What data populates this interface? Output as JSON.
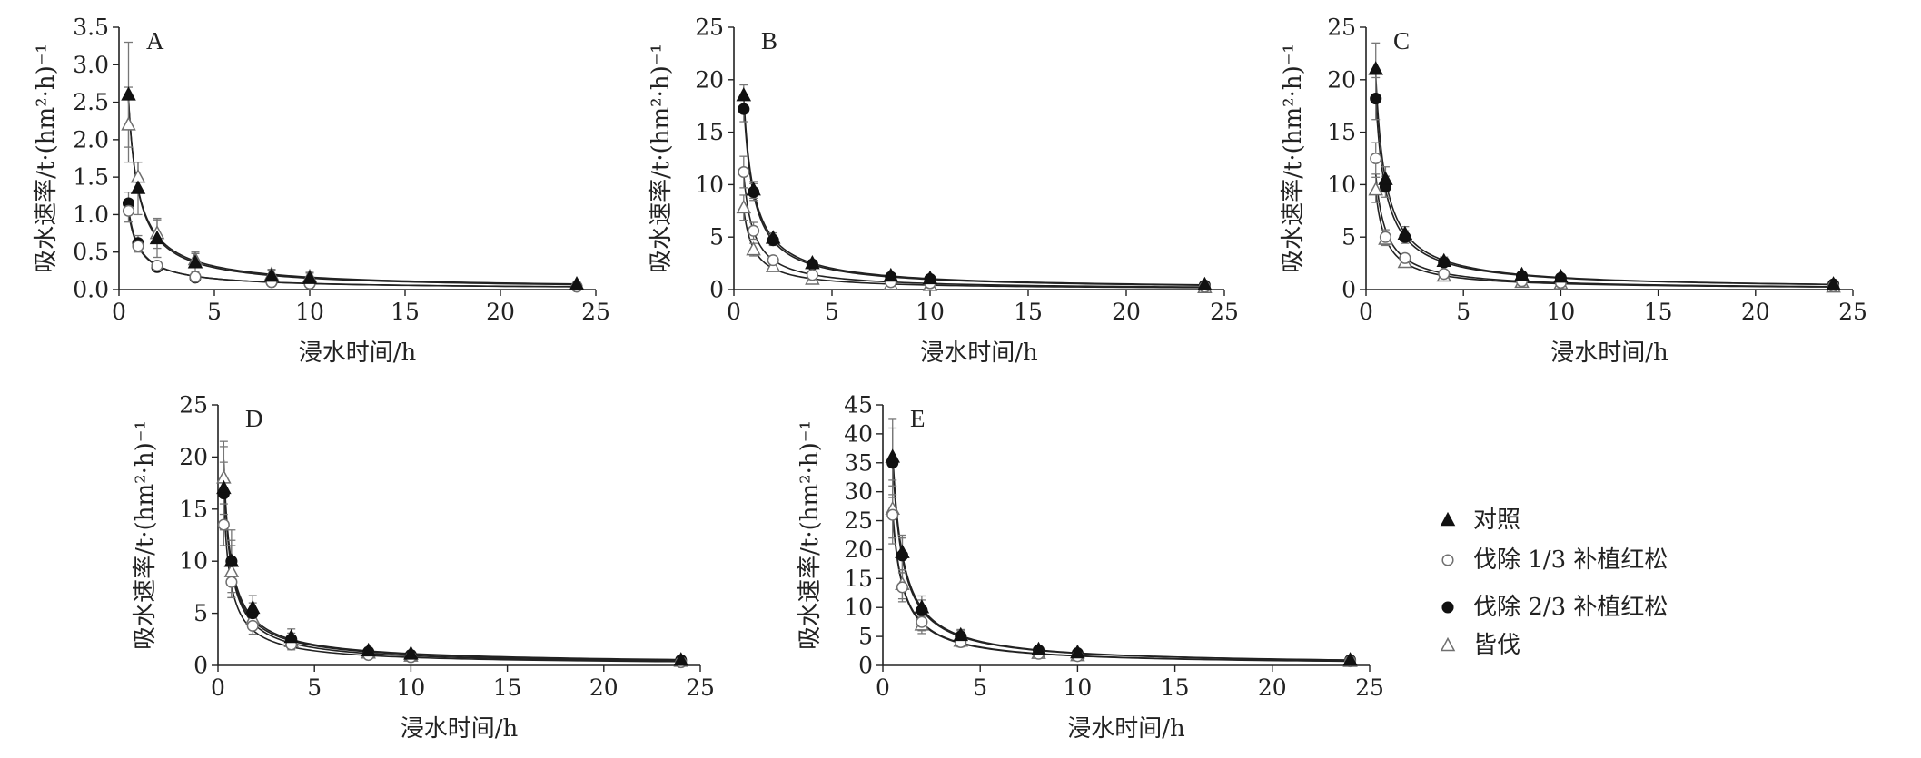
{
  "legend": {
    "placement": "right",
    "entries": [
      {
        "label": "对照",
        "marker": "filled-triangle"
      },
      {
        "label": "伐除 1/3 补植红松",
        "marker": "open-circle"
      },
      {
        "label": "伐除 2/3 补植红松",
        "marker": "filled-circle"
      },
      {
        "label": "皆伐",
        "marker": "open-triangle"
      }
    ]
  },
  "chart_data": [
    {
      "type": "line",
      "label": "A",
      "xlabel": "浸水时间/h",
      "ylabel": "吸水速率/t·(hm²·h)⁻¹",
      "xlim": [
        0,
        25
      ],
      "ylim": [
        0,
        3.5
      ],
      "xtick_labels": [
        "0",
        "5",
        "10",
        "15",
        "20",
        "25"
      ],
      "ytick_labels": [
        "0.0",
        "0.5",
        "1.0",
        "1.5",
        "2.0",
        "2.5",
        "3.0",
        "3.5"
      ],
      "x": [
        0.5,
        1,
        2,
        4,
        8,
        10,
        24
      ],
      "series": [
        {
          "marker": "filled-triangle",
          "values": [
            2.6,
            1.35,
            0.68,
            0.36,
            0.18,
            0.15,
            0.07
          ],
          "err": [
            0.7,
            0.35,
            0.25,
            0.12,
            0.08,
            0.07,
            0.03
          ]
        },
        {
          "marker": "open-circle",
          "values": [
            1.05,
            0.58,
            0.32,
            0.17,
            0.1,
            0.08,
            0.04
          ],
          "err": [
            0.15,
            0.08,
            0.05,
            0.03,
            0.02,
            0.02,
            0.01
          ]
        },
        {
          "marker": "filled-circle",
          "values": [
            1.15,
            0.62,
            0.3,
            0.16,
            0.1,
            0.08,
            0.04
          ],
          "err": [
            0.15,
            0.1,
            0.05,
            0.03,
            0.02,
            0.02,
            0.01
          ]
        },
        {
          "marker": "open-triangle",
          "values": [
            2.2,
            1.5,
            0.75,
            0.4,
            0.2,
            0.17,
            0.07
          ],
          "err": [
            0.5,
            0.2,
            0.2,
            0.1,
            0.07,
            0.06,
            0.02
          ]
        }
      ]
    },
    {
      "type": "line",
      "label": "B",
      "xlabel": "浸水时间/h",
      "ylabel": "吸水速率/t·(hm²·h)⁻¹",
      "xlim": [
        0,
        25
      ],
      "ylim": [
        0,
        25
      ],
      "xtick_labels": [
        "0",
        "5",
        "10",
        "15",
        "20",
        "25"
      ],
      "ytick_labels": [
        "0",
        "5",
        "10",
        "15",
        "20",
        "25"
      ],
      "x": [
        0.5,
        1,
        2,
        4,
        8,
        10,
        24
      ],
      "series": [
        {
          "marker": "filled-triangle",
          "values": [
            18.5,
            9.5,
            4.9,
            2.5,
            1.3,
            1.05,
            0.45
          ],
          "err": [
            1.0,
            0.8,
            0.5,
            0.3,
            0.2,
            0.15,
            0.1
          ]
        },
        {
          "marker": "open-circle",
          "values": [
            11.2,
            5.6,
            2.8,
            1.4,
            0.7,
            0.6,
            0.25
          ],
          "err": [
            1.5,
            0.8,
            0.4,
            0.2,
            0.1,
            0.1,
            0.05
          ]
        },
        {
          "marker": "filled-circle",
          "values": [
            17.2,
            9.3,
            4.7,
            2.4,
            1.2,
            1.0,
            0.4
          ],
          "err": [
            1.2,
            0.8,
            0.5,
            0.3,
            0.2,
            0.15,
            0.1
          ]
        },
        {
          "marker": "open-triangle",
          "values": [
            7.8,
            3.8,
            2.2,
            1.0,
            0.5,
            0.4,
            0.2
          ],
          "err": [
            1.2,
            0.6,
            0.3,
            0.15,
            0.1,
            0.08,
            0.04
          ]
        }
      ]
    },
    {
      "type": "line",
      "label": "C",
      "xlabel": "浸水时间/h",
      "ylabel": "吸水速率/t·(hm²·h)⁻¹",
      "xlim": [
        0,
        25
      ],
      "ylim": [
        0,
        25
      ],
      "xtick_labels": [
        "0",
        "5",
        "10",
        "15",
        "20",
        "25"
      ],
      "ytick_labels": [
        "0",
        "5",
        "10",
        "15",
        "20",
        "25"
      ],
      "x": [
        0.5,
        1,
        2,
        4,
        8,
        10,
        24
      ],
      "series": [
        {
          "marker": "filled-triangle",
          "values": [
            21,
            10.5,
            5.3,
            2.7,
            1.4,
            1.2,
            0.5
          ],
          "err": [
            2.5,
            1.2,
            0.7,
            0.4,
            0.2,
            0.2,
            0.1
          ]
        },
        {
          "marker": "open-circle",
          "values": [
            12.5,
            5.0,
            3.0,
            1.5,
            0.8,
            0.65,
            0.3
          ],
          "err": [
            1.5,
            0.7,
            0.4,
            0.2,
            0.1,
            0.1,
            0.05
          ]
        },
        {
          "marker": "filled-circle",
          "values": [
            18.2,
            9.8,
            5.0,
            2.6,
            1.3,
            1.1,
            0.5
          ],
          "err": [
            2.0,
            1.0,
            0.6,
            0.3,
            0.2,
            0.15,
            0.1
          ]
        },
        {
          "marker": "open-triangle",
          "values": [
            9.5,
            4.8,
            2.6,
            1.3,
            0.7,
            0.55,
            0.25
          ],
          "err": [
            1.2,
            0.6,
            0.3,
            0.2,
            0.1,
            0.08,
            0.04
          ]
        }
      ]
    },
    {
      "type": "line",
      "label": "D",
      "xlabel": "浸水时间/h",
      "ylabel": "吸水速率/t·(hm²·h)⁻¹",
      "xlim": [
        0,
        25
      ],
      "ylim": [
        0,
        25
      ],
      "xtick_labels": [
        "0",
        "5",
        "10",
        "15",
        "20",
        "25"
      ],
      "ytick_labels": [
        "0",
        "5",
        "10",
        "15",
        "20",
        "25"
      ],
      "x": [
        0.3,
        0.7,
        1.8,
        3.8,
        7.8,
        10,
        24
      ],
      "series": [
        {
          "marker": "filled-triangle",
          "values": [
            17,
            10,
            5.5,
            2.7,
            1.4,
            1.1,
            0.5
          ],
          "err": [
            4.0,
            3.0,
            1.2,
            0.8,
            0.3,
            0.3,
            0.1
          ]
        },
        {
          "marker": "open-circle",
          "values": [
            13.5,
            8,
            3.8,
            2.0,
            1.0,
            0.8,
            0.3
          ],
          "err": [
            2.0,
            1.5,
            0.8,
            0.5,
            0.2,
            0.2,
            0.1
          ]
        },
        {
          "marker": "filled-circle",
          "values": [
            16.5,
            10,
            5.0,
            2.5,
            1.3,
            1.0,
            0.5
          ],
          "err": [
            3.0,
            2.0,
            1.0,
            0.6,
            0.3,
            0.2,
            0.1
          ]
        },
        {
          "marker": "open-triangle",
          "values": [
            18,
            9,
            4.5,
            2.3,
            1.2,
            0.9,
            0.4
          ],
          "err": [
            3.5,
            2.5,
            1.0,
            0.6,
            0.3,
            0.2,
            0.1
          ]
        }
      ]
    },
    {
      "type": "line",
      "label": "E",
      "xlabel": "浸水时间/h",
      "ylabel": "吸水速率/t·(hm²·h)⁻¹",
      "xlim": [
        0,
        25
      ],
      "ylim": [
        0,
        45
      ],
      "xtick_labels": [
        "0",
        "5",
        "10",
        "15",
        "20",
        "25"
      ],
      "ytick_labels": [
        "0",
        "5",
        "10",
        "15",
        "20",
        "25",
        "30",
        "35",
        "40",
        "45"
      ],
      "x": [
        0.5,
        1,
        2,
        4,
        8,
        10,
        24
      ],
      "series": [
        {
          "marker": "filled-triangle",
          "values": [
            36,
            19.5,
            10,
            5.2,
            2.7,
            2.2,
            0.9
          ],
          "err": [
            6.5,
            3.0,
            2.0,
            1.0,
            0.5,
            0.4,
            0.2
          ]
        },
        {
          "marker": "open-circle",
          "values": [
            26,
            13.5,
            7.5,
            4.0,
            2.0,
            1.6,
            0.7
          ],
          "err": [
            5.0,
            2.5,
            1.5,
            0.8,
            0.4,
            0.3,
            0.15
          ]
        },
        {
          "marker": "filled-circle",
          "values": [
            35,
            19,
            9.5,
            5.0,
            2.6,
            2.1,
            0.9
          ],
          "err": [
            6.0,
            3.0,
            1.8,
            1.0,
            0.5,
            0.4,
            0.2
          ]
        },
        {
          "marker": "open-triangle",
          "values": [
            27,
            14,
            7,
            4.2,
            2.1,
            1.7,
            0.7
          ],
          "err": [
            5.0,
            2.5,
            1.5,
            0.8,
            0.4,
            0.3,
            0.15
          ]
        }
      ]
    }
  ]
}
